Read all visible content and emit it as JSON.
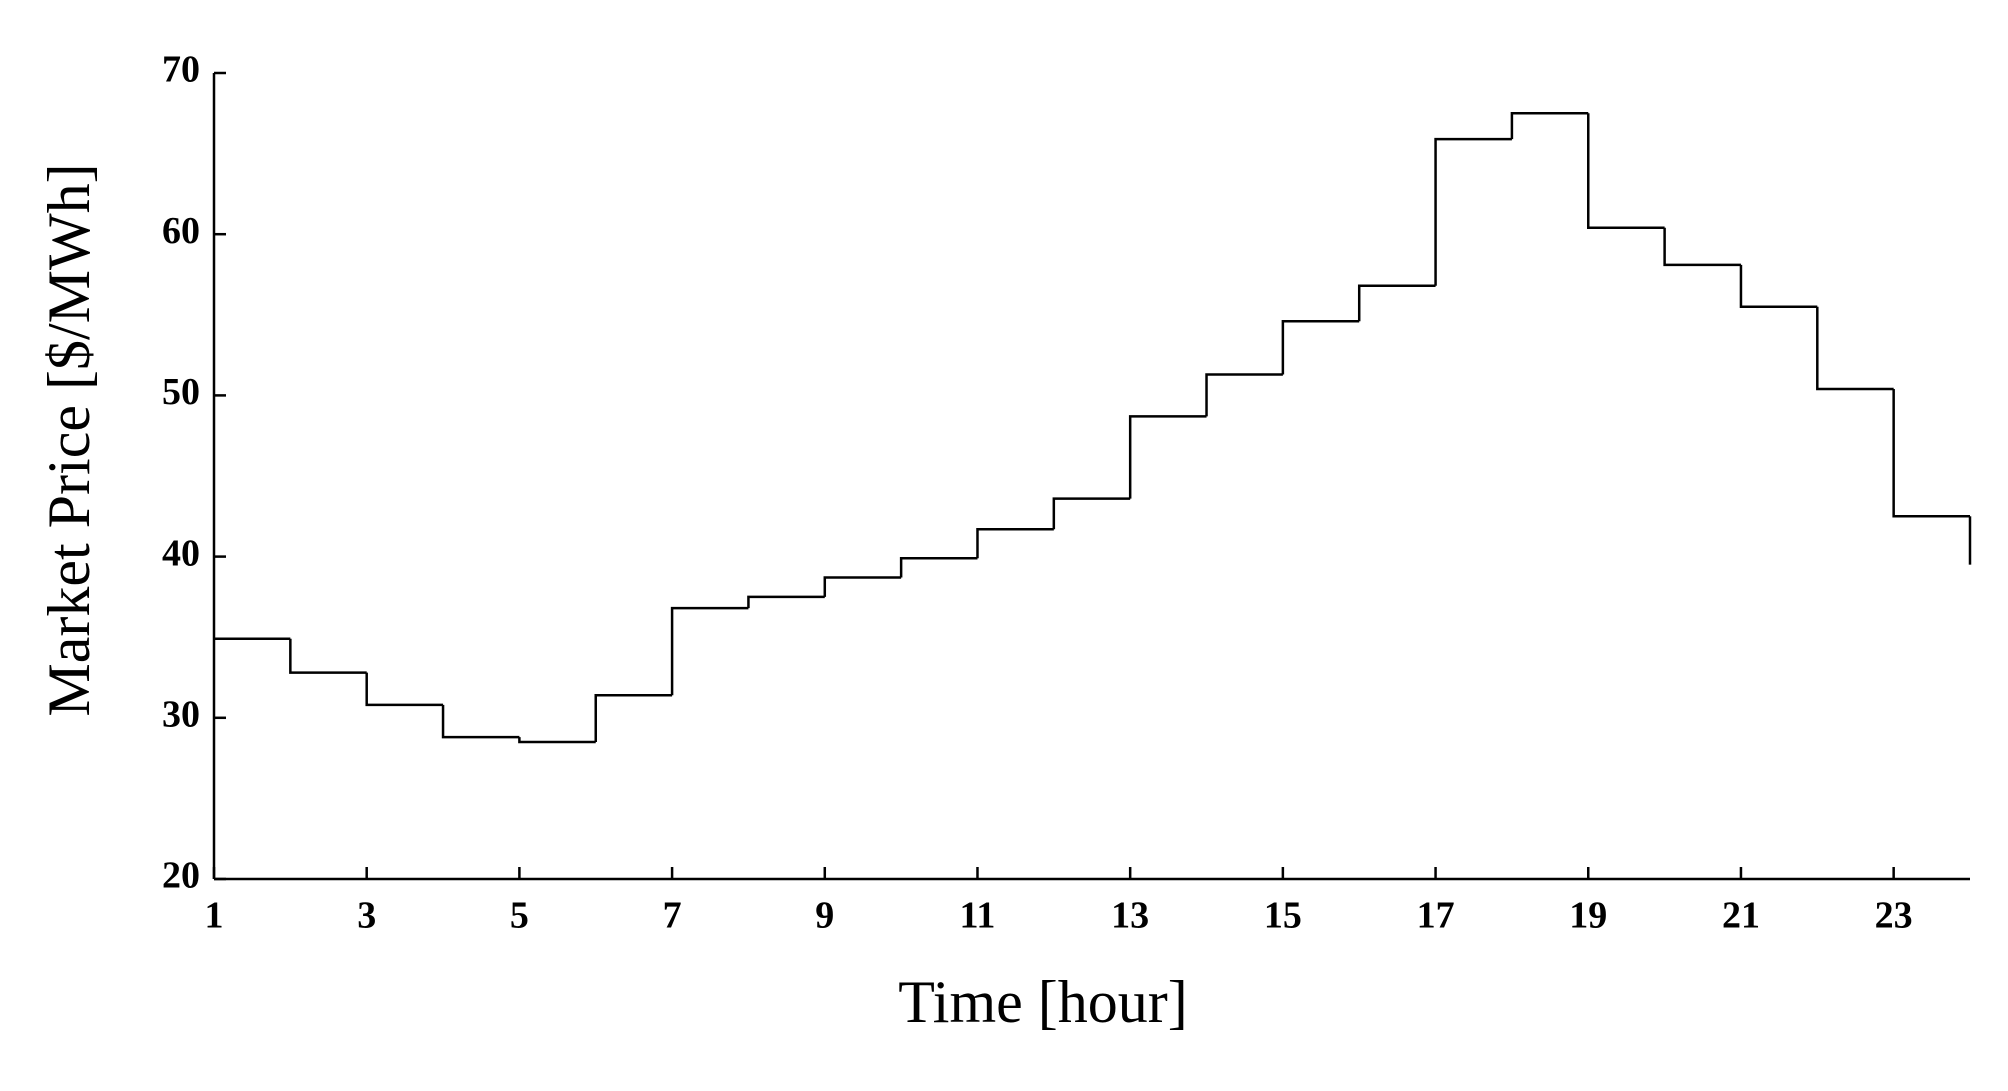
{
  "chart_data": {
    "type": "step",
    "xlabel": "Time [hour]",
    "ylabel": "Market Price [$/MWh]",
    "x": [
      1,
      2,
      3,
      4,
      5,
      6,
      7,
      8,
      9,
      10,
      11,
      12,
      13,
      14,
      15,
      16,
      17,
      18,
      19,
      20,
      21,
      22,
      23,
      24
    ],
    "values": [
      34.9,
      32.8,
      30.8,
      28.8,
      28.5,
      31.4,
      36.8,
      37.5,
      38.7,
      39.9,
      41.7,
      43.6,
      48.7,
      51.3,
      54.6,
      56.8,
      65.9,
      67.5,
      60.4,
      58.1,
      55.5,
      50.4,
      42.5,
      39.5
    ],
    "color": "#000000",
    "xlim": [
      1,
      24
    ],
    "xticks": [
      1,
      3,
      5,
      7,
      9,
      11,
      13,
      15,
      17,
      19,
      21,
      23
    ],
    "ylim": [
      20,
      70
    ],
    "yticks": [
      20,
      30,
      40,
      50,
      60,
      70
    ],
    "grid": false
  }
}
